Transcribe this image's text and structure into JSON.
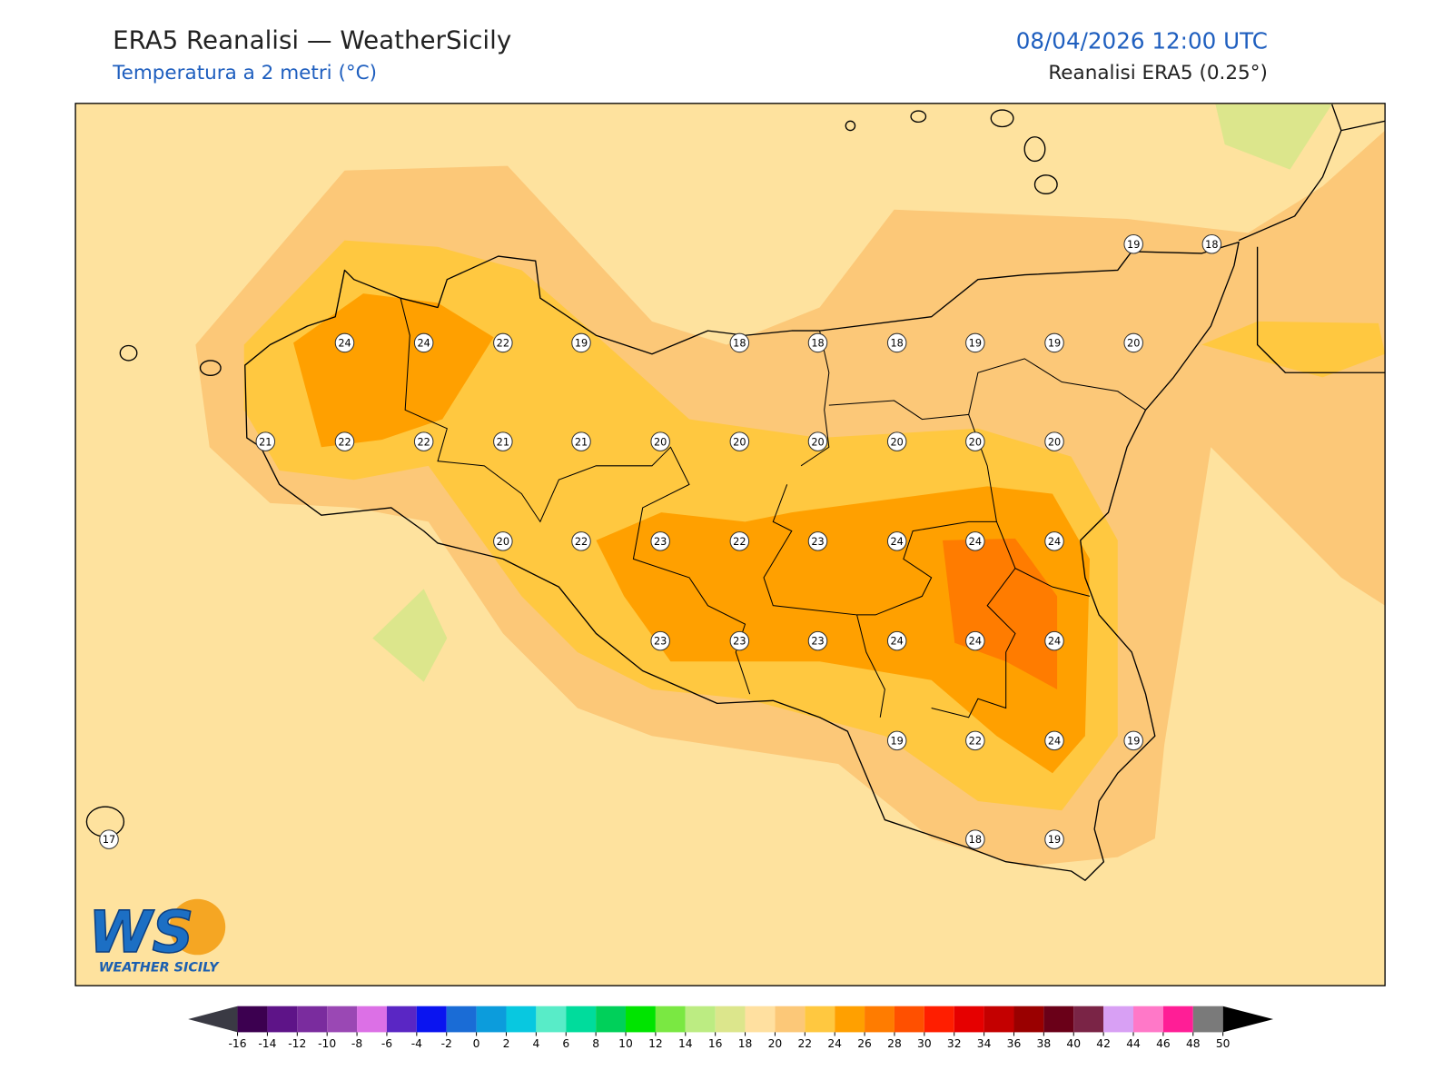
{
  "header": {
    "title": "ERA5 Reanalisi — WeatherSicily",
    "subtitle": "Temperatura a 2 metri (°C)",
    "datetime": "08/04/2026 12:00 UTC",
    "source": "Reanalisi ERA5 (0.25°)"
  },
  "stations": [
    19,
    18,
    24,
    24,
    22,
    19,
    18,
    18,
    18,
    19,
    19,
    20,
    21,
    22,
    22,
    21,
    21,
    20,
    20,
    20,
    20,
    20,
    20,
    20,
    22,
    23,
    22,
    23,
    24,
    24,
    24,
    23,
    23,
    23,
    24,
    24,
    24,
    19,
    22,
    24,
    19,
    17,
    18,
    19
  ],
  "logo": {
    "mark": "WS",
    "name": "WEATHER SICILY"
  },
  "colorbar": {
    "ticks": [
      -16,
      -14,
      -12,
      -10,
      -8,
      -6,
      -4,
      -2,
      0,
      2,
      4,
      6,
      8,
      10,
      12,
      14,
      16,
      18,
      20,
      22,
      24,
      26,
      28,
      30,
      32,
      34,
      36,
      38,
      40,
      42,
      44,
      46,
      48,
      50
    ],
    "colors": [
      "#3c0050",
      "#5e1488",
      "#7a2c9e",
      "#9a48b4",
      "#dc70e6",
      "#5a26c4",
      "#0a14f0",
      "#1a6cd6",
      "#0c9cdc",
      "#08c8e0",
      "#58ecc8",
      "#00dc9c",
      "#00d05a",
      "#00e400",
      "#7ae842",
      "#bcec82",
      "#dce68c",
      "#ffe0a0",
      "#fcc878",
      "#ffc840",
      "#ffa000",
      "#ff7c00",
      "#ff5000",
      "#ff1e00",
      "#e60000",
      "#c40000",
      "#9a0000",
      "#6a0018",
      "#7a2446",
      "#d8a0f4",
      "#ff78c8",
      "#ff1e96",
      "#7a7a7a",
      "#343434"
    ],
    "under": "#3a3a44",
    "over": "#000000"
  }
}
